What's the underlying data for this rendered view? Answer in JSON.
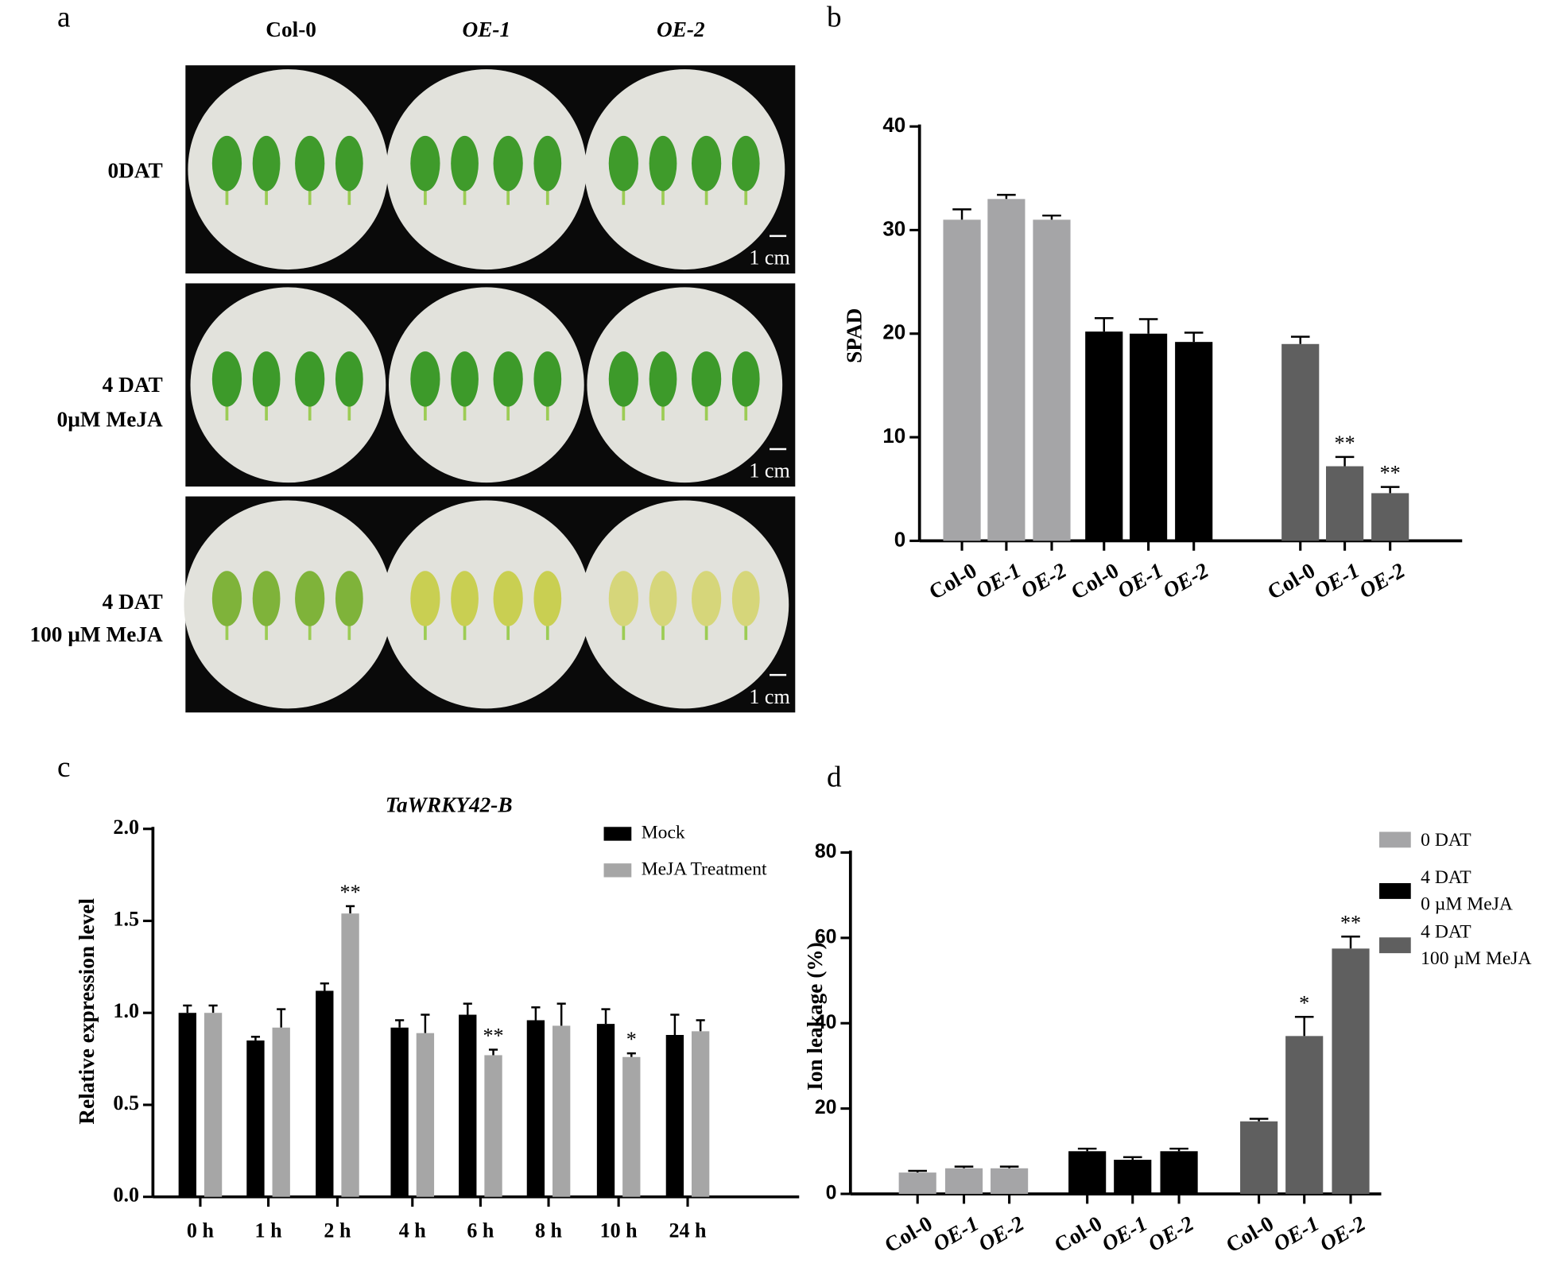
{
  "panel_a": {
    "panel_label": "a",
    "columns": [
      "Col-0",
      "OE-1",
      "OE-2"
    ],
    "rows": [
      [
        "0DAT"
      ],
      [
        "4 DAT",
        "0µM  MeJA"
      ],
      [
        "4 DAT",
        "100 µM  MeJA"
      ]
    ],
    "scale_bar": "1 cm"
  },
  "chart_data": [
    {
      "type": "bar",
      "panel_label": "b",
      "ylabel": "SPAD",
      "ylim": [
        0,
        40
      ],
      "yticks": [
        0,
        10,
        20,
        30,
        40
      ],
      "series": [
        {
          "color": "#a5a5a7",
          "categories": [
            "Col-0",
            "OE-1",
            "OE-2"
          ],
          "values": [
            31,
            33,
            31
          ],
          "errors": [
            1,
            0.4,
            0.4
          ],
          "annotations": [
            null,
            null,
            null
          ]
        },
        {
          "color": "#000000",
          "categories": [
            "Col-0",
            "OE-1",
            "OE-2"
          ],
          "values": [
            20.2,
            20,
            19.2
          ],
          "errors": [
            1.3,
            1.4,
            0.9
          ],
          "annotations": [
            null,
            null,
            null
          ]
        },
        {
          "color": "#5f5f5f",
          "categories": [
            "Col-0",
            "OE-1",
            "OE-2"
          ],
          "values": [
            19,
            7.2,
            4.6
          ],
          "errors": [
            0.7,
            0.9,
            0.6
          ],
          "annotations": [
            null,
            "**",
            "**"
          ]
        }
      ]
    },
    {
      "type": "grouped_bar",
      "panel_label": "c",
      "title": "TaWRKY42-B",
      "ylabel": "Relative expression level",
      "ylim": [
        0,
        2
      ],
      "yticks": [
        {
          "value": 0,
          "label": "0.0"
        },
        0.5,
        {
          "value": 1,
          "label": "1.0"
        },
        1.5,
        {
          "value": 2,
          "label": "2.0"
        }
      ],
      "categories": [
        "0 h",
        "1 h",
        "2 h",
        "4 h",
        "6 h",
        "8 h",
        "10 h",
        "24 h"
      ],
      "series": [
        {
          "name": "Mock",
          "color": "#000000",
          "values": [
            1.0,
            0.85,
            1.12,
            0.92,
            0.99,
            0.96,
            0.94,
            0.88
          ],
          "errors": [
            0.04,
            0.02,
            0.04,
            0.04,
            0.06,
            0.07,
            0.08,
            0.11
          ],
          "annotations": [
            null,
            null,
            null,
            null,
            null,
            null,
            null,
            null
          ]
        },
        {
          "name": "MeJA Treatment",
          "color": "#a6a6a6",
          "values": [
            1.0,
            0.92,
            1.54,
            0.89,
            0.77,
            0.93,
            0.76,
            0.9
          ],
          "errors": [
            0.04,
            0.1,
            0.04,
            0.1,
            0.03,
            0.12,
            0.02,
            0.06
          ],
          "annotations": [
            null,
            null,
            "**",
            null,
            "**",
            null,
            "*",
            null
          ]
        }
      ]
    },
    {
      "type": "bar",
      "panel_label": "d",
      "ylabel": "Ion leakage (%)",
      "ylim": [
        0,
        80
      ],
      "yticks": [
        0,
        20,
        40,
        60,
        80
      ],
      "series": [
        {
          "name": "0 DAT",
          "color": "#a5a5a7",
          "categories": [
            "Col-0",
            "OE-1",
            "OE-2"
          ],
          "values": [
            5,
            6,
            6
          ],
          "errors": [
            0.4,
            0.4,
            0.4
          ],
          "annotations": [
            null,
            null,
            null
          ]
        },
        {
          "name": "4 DAT\n0 µM MeJA",
          "color": "#000000",
          "categories": [
            "Col-0",
            "OE-1",
            "OE-2"
          ],
          "values": [
            10,
            8,
            10
          ],
          "errors": [
            0.6,
            0.6,
            0.6
          ],
          "annotations": [
            null,
            null,
            null
          ]
        },
        {
          "name": "4 DAT\n100 µM  MeJA",
          "color": "#5f5f5f",
          "categories": [
            "Col-0",
            "OE-1",
            "OE-2"
          ],
          "values": [
            17,
            37,
            57.5
          ],
          "errors": [
            0.6,
            4.5,
            2.8
          ],
          "annotations": [
            null,
            "*",
            "**"
          ]
        }
      ]
    }
  ]
}
